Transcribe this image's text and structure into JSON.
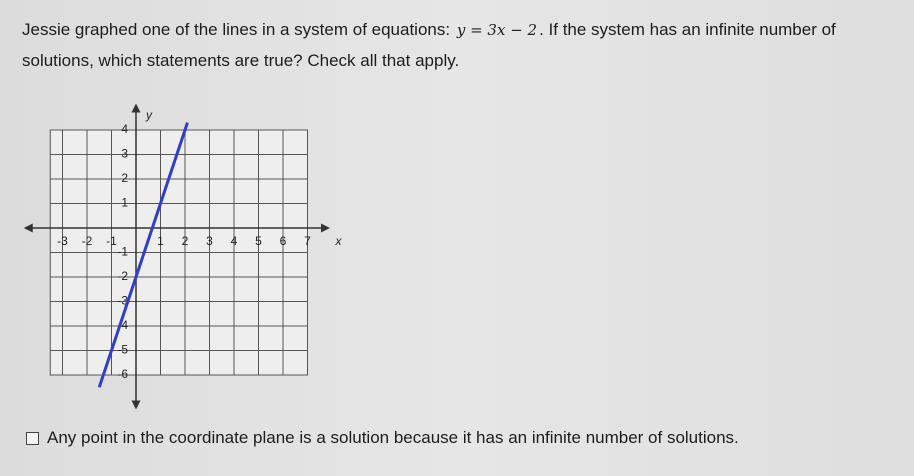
{
  "question": {
    "before": "Jessie graphed one of the lines in a system of equations:",
    "equation": "y = 3x − 2",
    "after": ". If the system has an infinite number of",
    "line2": "solutions, which statements are true? Check all that apply."
  },
  "graph": {
    "x_label": "x",
    "y_label": "y",
    "xticks": [
      -3,
      -2,
      -1,
      1,
      2,
      3,
      4,
      5,
      6,
      7
    ],
    "yticks": [
      -6,
      -5,
      -4,
      -3,
      -2,
      -1,
      1,
      2,
      3,
      4
    ],
    "line": {
      "color": "#2f3fc8",
      "x": [
        -1.5,
        2.1
      ],
      "y": [
        -6.5,
        4.3
      ]
    }
  },
  "options": [
    "Any point in the coordinate plane is a solution because it has an infinite number of solutions."
  ]
}
